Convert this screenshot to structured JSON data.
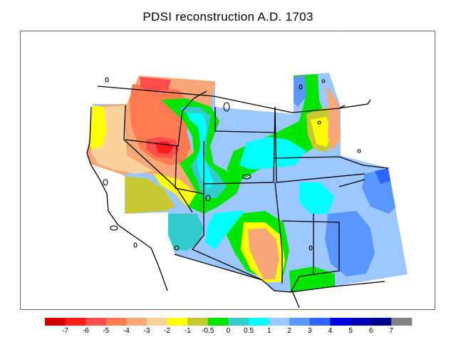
{
  "title": "PDSI reconstruction A.D. 1703",
  "legend": {
    "colors": [
      "#d40000",
      "#ff1a1a",
      "#ff4d4d",
      "#ff7a50",
      "#f8a878",
      "#fcd29c",
      "#ffff00",
      "#c8c832",
      "#00e600",
      "#33cccc",
      "#00ffff",
      "#9cc8ff",
      "#5a96ff",
      "#2d64ff",
      "#0000e6",
      "#0000b4",
      "#00008c",
      "#828282"
    ],
    "ticks": [
      "-7",
      "-6",
      "-5",
      "-4",
      "-3",
      "-2",
      "-1",
      "-0.5",
      "0",
      "0.5",
      "1",
      "2",
      "3",
      "4",
      "5",
      "6",
      "7"
    ]
  },
  "color_key": {
    "dark_red": "#d40000",
    "salmon": "#f8a878",
    "peach": "#fcd29c",
    "yellow": "#ffff00",
    "olive": "#c8c832",
    "green": "#00e600",
    "teal": "#33cccc",
    "cyan": "#00ffff",
    "light_blue": "#9cc8ff",
    "blue": "#5a96ff"
  }
}
